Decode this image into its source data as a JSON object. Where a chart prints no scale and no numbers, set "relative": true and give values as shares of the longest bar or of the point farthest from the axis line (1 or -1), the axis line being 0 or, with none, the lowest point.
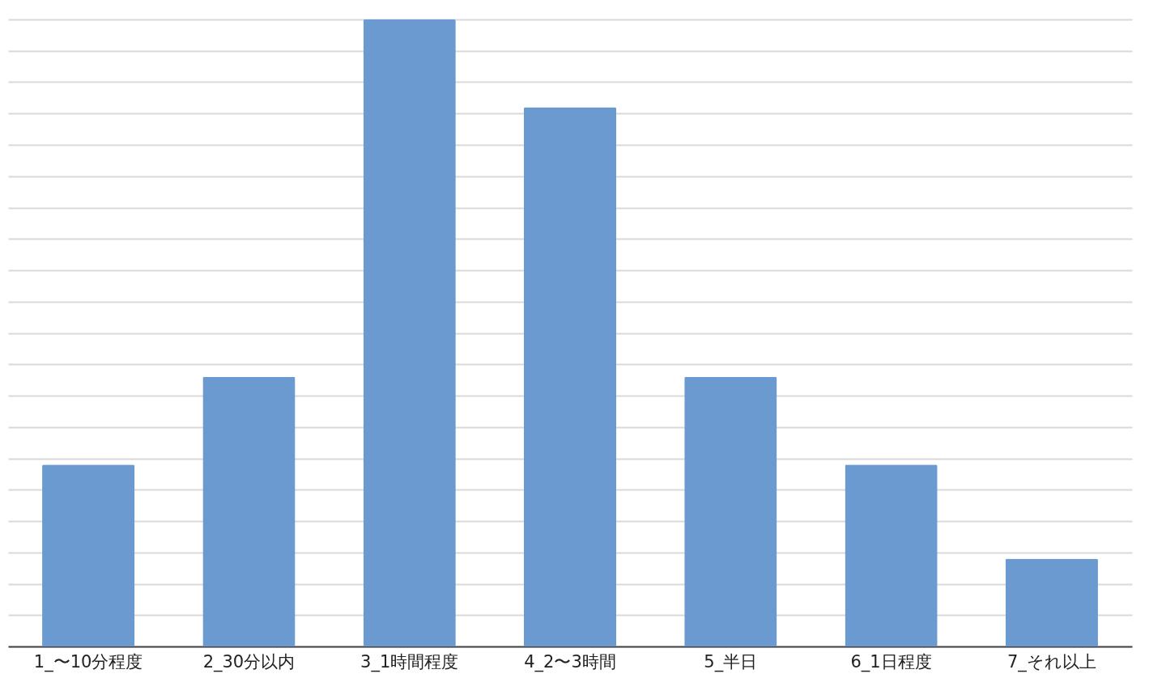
{
  "chart_data": {
    "type": "bar",
    "relative": true,
    "grid": "y",
    "categories": [
      "1_〜10分程度",
      "2_30分以内",
      "3_1時間程度",
      "4_2〜3時間",
      "5_半日",
      "6_1日程度",
      "7_それ以上"
    ],
    "values": [
      0.29,
      0.43,
      1,
      0.86,
      0.43,
      0.29,
      0.14
    ],
    "color": "#6b9ad0"
  }
}
